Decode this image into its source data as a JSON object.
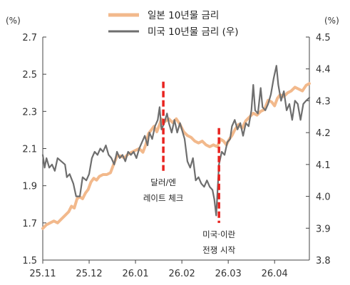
{
  "chart_data": {
    "type": "line",
    "left_unit": "(%)",
    "right_unit": "(%)",
    "colors": {
      "japan": "#f2b98c",
      "us": "#6e6e6e",
      "annotation": "#e8231f"
    },
    "y_left": {
      "range": [
        1.5,
        2.7
      ],
      "ticks": [
        "1.5",
        "1.7",
        "1.9",
        "2.1",
        "2.3",
        "2.5",
        "2.7"
      ]
    },
    "y_right": {
      "range": [
        3.8,
        4.5
      ],
      "ticks": [
        "3.8",
        "3.9",
        "4.0",
        "4.1",
        "4.2",
        "4.3",
        "4.4",
        "4.5"
      ]
    },
    "x": {
      "range": [
        0,
        5.75
      ],
      "ticks": [
        {
          "value": 0,
          "label": "25.11"
        },
        {
          "value": 1,
          "label": "25.12"
        },
        {
          "value": 2,
          "label": "26.01"
        },
        {
          "value": 3,
          "label": "26.02"
        },
        {
          "value": 4,
          "label": "26.03"
        },
        {
          "value": 5,
          "label": "26.04"
        }
      ]
    },
    "series": [
      {
        "name": "일본 10년물 금리",
        "axis": "left",
        "points": [
          [
            0,
            1.67
          ],
          [
            0.08,
            1.69
          ],
          [
            0.16,
            1.7
          ],
          [
            0.24,
            1.71
          ],
          [
            0.32,
            1.7
          ],
          [
            0.4,
            1.72
          ],
          [
            0.48,
            1.74
          ],
          [
            0.56,
            1.76
          ],
          [
            0.62,
            1.79
          ],
          [
            0.68,
            1.78
          ],
          [
            0.74,
            1.83
          ],
          [
            0.8,
            1.84
          ],
          [
            0.86,
            1.83
          ],
          [
            0.92,
            1.86
          ],
          [
            0.98,
            1.88
          ],
          [
            1.04,
            1.92
          ],
          [
            1.1,
            1.94
          ],
          [
            1.16,
            1.93
          ],
          [
            1.22,
            1.95
          ],
          [
            1.3,
            1.96
          ],
          [
            1.38,
            1.96
          ],
          [
            1.46,
            1.97
          ],
          [
            1.52,
            2.01
          ],
          [
            1.6,
            2.06
          ],
          [
            1.68,
            2.06
          ],
          [
            1.76,
            2.05
          ],
          [
            1.84,
            2.07
          ],
          [
            1.92,
            2.08
          ],
          [
            2.0,
            2.09
          ],
          [
            2.08,
            2.1
          ],
          [
            2.16,
            2.08
          ],
          [
            2.22,
            2.12
          ],
          [
            2.28,
            2.18
          ],
          [
            2.34,
            2.2
          ],
          [
            2.4,
            2.22
          ],
          [
            2.46,
            2.19
          ],
          [
            2.52,
            2.23
          ],
          [
            2.56,
            2.26
          ],
          [
            2.6,
            2.24
          ],
          [
            2.66,
            2.25
          ],
          [
            2.72,
            2.26
          ],
          [
            2.8,
            2.24
          ],
          [
            2.88,
            2.26
          ],
          [
            2.96,
            2.23
          ],
          [
            3.04,
            2.19
          ],
          [
            3.12,
            2.17
          ],
          [
            3.2,
            2.16
          ],
          [
            3.28,
            2.14
          ],
          [
            3.36,
            2.13
          ],
          [
            3.44,
            2.14
          ],
          [
            3.52,
            2.12
          ],
          [
            3.6,
            2.11
          ],
          [
            3.68,
            2.12
          ],
          [
            3.76,
            2.11
          ],
          [
            3.84,
            2.15
          ],
          [
            3.9,
            2.14
          ],
          [
            3.96,
            2.12
          ],
          [
            4.02,
            2.15
          ],
          [
            4.08,
            2.17
          ],
          [
            4.14,
            2.2
          ],
          [
            4.22,
            2.23
          ],
          [
            4.3,
            2.21
          ],
          [
            4.38,
            2.25
          ],
          [
            4.46,
            2.27
          ],
          [
            4.54,
            2.29
          ],
          [
            4.62,
            2.28
          ],
          [
            4.7,
            2.3
          ],
          [
            4.78,
            2.31
          ],
          [
            4.86,
            2.36
          ],
          [
            4.94,
            2.35
          ],
          [
            5.0,
            2.33
          ],
          [
            5.06,
            2.37
          ],
          [
            5.12,
            2.39
          ],
          [
            5.2,
            2.38
          ],
          [
            5.28,
            2.4
          ],
          [
            5.36,
            2.41
          ],
          [
            5.44,
            2.43
          ],
          [
            5.52,
            2.42
          ],
          [
            5.6,
            2.41
          ],
          [
            5.68,
            2.44
          ],
          [
            5.75,
            2.45
          ]
        ]
      },
      {
        "name": "미국 10년물 금리 (우)",
        "axis": "right",
        "points": [
          [
            0,
            4.13
          ],
          [
            0.04,
            4.09
          ],
          [
            0.08,
            4.12
          ],
          [
            0.14,
            4.09
          ],
          [
            0.2,
            4.1
          ],
          [
            0.26,
            4.08
          ],
          [
            0.32,
            4.12
          ],
          [
            0.4,
            4.11
          ],
          [
            0.48,
            4.1
          ],
          [
            0.52,
            4.06
          ],
          [
            0.58,
            4.07
          ],
          [
            0.66,
            4.04
          ],
          [
            0.72,
            4.0
          ],
          [
            0.8,
            4.0
          ],
          [
            0.86,
            4.06
          ],
          [
            0.94,
            4.05
          ],
          [
            1.0,
            4.07
          ],
          [
            1.06,
            4.12
          ],
          [
            1.12,
            4.14
          ],
          [
            1.18,
            4.13
          ],
          [
            1.24,
            4.15
          ],
          [
            1.3,
            4.14
          ],
          [
            1.36,
            4.16
          ],
          [
            1.42,
            4.13
          ],
          [
            1.48,
            4.12
          ],
          [
            1.54,
            4.1
          ],
          [
            1.6,
            4.14
          ],
          [
            1.66,
            4.12
          ],
          [
            1.72,
            4.13
          ],
          [
            1.78,
            4.11
          ],
          [
            1.84,
            4.14
          ],
          [
            1.9,
            4.13
          ],
          [
            1.96,
            4.14
          ],
          [
            2.02,
            4.12
          ],
          [
            2.08,
            4.15
          ],
          [
            2.14,
            4.17
          ],
          [
            2.2,
            4.19
          ],
          [
            2.26,
            4.16
          ],
          [
            2.3,
            4.2
          ],
          [
            2.36,
            4.18
          ],
          [
            2.42,
            4.22
          ],
          [
            2.48,
            4.24
          ],
          [
            2.52,
            4.28
          ],
          [
            2.56,
            4.21
          ],
          [
            2.62,
            4.23
          ],
          [
            2.68,
            4.26
          ],
          [
            2.72,
            4.23
          ],
          [
            2.78,
            4.2
          ],
          [
            2.84,
            4.24
          ],
          [
            2.9,
            4.2
          ],
          [
            2.96,
            4.23
          ],
          [
            3.0,
            4.21
          ],
          [
            3.06,
            4.18
          ],
          [
            3.12,
            4.11
          ],
          [
            3.18,
            4.09
          ],
          [
            3.24,
            4.12
          ],
          [
            3.3,
            4.05
          ],
          [
            3.36,
            4.06
          ],
          [
            3.42,
            4.04
          ],
          [
            3.48,
            4.03
          ],
          [
            3.54,
            4.05
          ],
          [
            3.6,
            4.03
          ],
          [
            3.66,
            4.02
          ],
          [
            3.7,
            3.99
          ],
          [
            3.74,
            3.94
          ],
          [
            3.8,
            4.1
          ],
          [
            3.86,
            4.14
          ],
          [
            3.92,
            4.13
          ],
          [
            3.98,
            4.17
          ],
          [
            4.04,
            4.18
          ],
          [
            4.08,
            4.22
          ],
          [
            4.14,
            4.24
          ],
          [
            4.2,
            4.21
          ],
          [
            4.26,
            4.23
          ],
          [
            4.32,
            4.19
          ],
          [
            4.38,
            4.23
          ],
          [
            4.44,
            4.22
          ],
          [
            4.5,
            4.27
          ],
          [
            4.54,
            4.35
          ],
          [
            4.58,
            4.27
          ],
          [
            4.64,
            4.26
          ],
          [
            4.7,
            4.34
          ],
          [
            4.74,
            4.28
          ],
          [
            4.8,
            4.27
          ],
          [
            4.86,
            4.29
          ],
          [
            4.92,
            4.32
          ],
          [
            4.98,
            4.37
          ],
          [
            5.04,
            4.41
          ],
          [
            5.08,
            4.35
          ],
          [
            5.14,
            4.3
          ],
          [
            5.2,
            4.33
          ],
          [
            5.26,
            4.27
          ],
          [
            5.32,
            4.29
          ],
          [
            5.38,
            4.24
          ],
          [
            5.44,
            4.3
          ],
          [
            5.5,
            4.29
          ],
          [
            5.56,
            4.24
          ],
          [
            5.62,
            4.29
          ],
          [
            5.68,
            4.3
          ],
          [
            5.75,
            4.31
          ]
        ]
      }
    ],
    "annotations": [
      {
        "x": 2.6,
        "y_from": 2.46,
        "y_to": 1.98,
        "lines": [
          "달러/엔",
          "레이트 체크"
        ]
      },
      {
        "x": 3.8,
        "y_from": 2.21,
        "y_to": 1.7,
        "lines": [
          "미국·이란",
          "전쟁 시작"
        ]
      }
    ]
  }
}
